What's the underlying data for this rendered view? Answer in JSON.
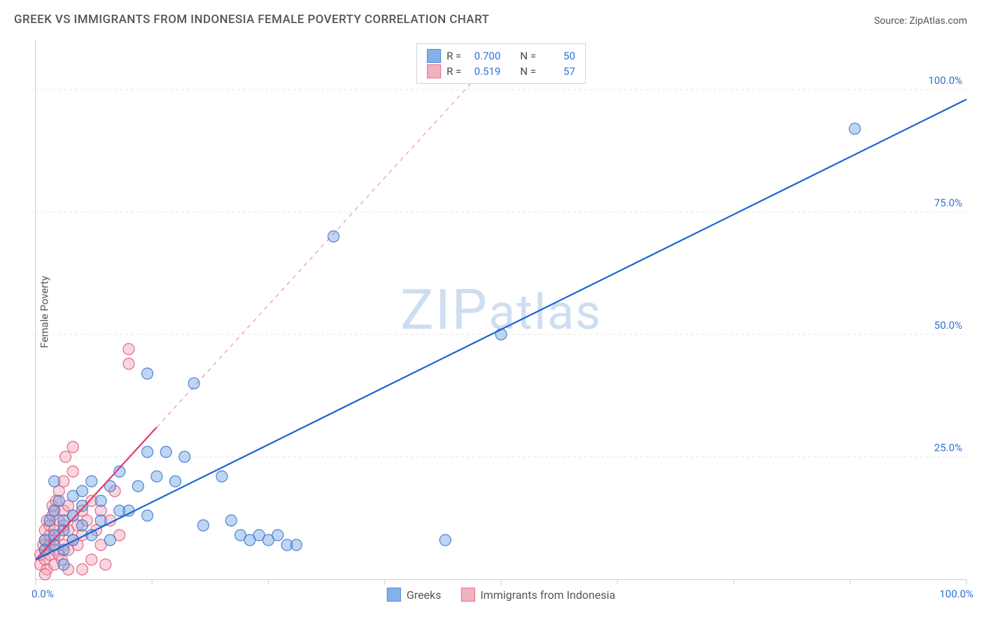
{
  "title": "GREEK VS IMMIGRANTS FROM INDONESIA FEMALE POVERTY CORRELATION CHART",
  "source": "Source: ZipAtlas.com",
  "ylabel": "Female Poverty",
  "watermark_prefix": "ZIP",
  "watermark_suffix": "atlas",
  "chart": {
    "type": "scatter",
    "xlim": [
      0,
      100
    ],
    "ylim": [
      0,
      110
    ],
    "x_axis_min_label": "0.0%",
    "x_axis_max_label": "100.0%",
    "y_gridlines": [
      {
        "value": 25,
        "label": "25.0%"
      },
      {
        "value": 50,
        "label": "50.0%"
      },
      {
        "value": 75,
        "label": "75.0%"
      },
      {
        "value": 100,
        "label": "100.0%"
      }
    ],
    "x_tick_positions": [
      0,
      12.5,
      25,
      37.5,
      50,
      62.5,
      75,
      87.5,
      100
    ],
    "background_color": "#ffffff",
    "grid_color": "#e6e6e6",
    "axis_color": "#d0d0d0",
    "tick_label_color": "#2f72d6",
    "marker_radius": 8,
    "marker_fill_opacity": 0.45,
    "marker_stroke_opacity": 0.9,
    "line_width": 2.2
  },
  "series": {
    "greeks": {
      "label": "Greeks",
      "color": "#6ea4e4",
      "stroke": "#3e79c9",
      "line_color": "#1a63d4",
      "R_label": "R =",
      "R_value": "0.700",
      "N_label": "N =",
      "N_value": "50",
      "trend": {
        "x1": 0,
        "y1": 4,
        "x2": 100,
        "y2": 98,
        "dashed_from_x": null
      },
      "points": [
        [
          1,
          6
        ],
        [
          1,
          8
        ],
        [
          1.5,
          12
        ],
        [
          2,
          7
        ],
        [
          2,
          9
        ],
        [
          2,
          14
        ],
        [
          2.5,
          16
        ],
        [
          2,
          20
        ],
        [
          3,
          6
        ],
        [
          3,
          10
        ],
        [
          3,
          12
        ],
        [
          4,
          8
        ],
        [
          4,
          13
        ],
        [
          4,
          17
        ],
        [
          5,
          11
        ],
        [
          5,
          15
        ],
        [
          5,
          18
        ],
        [
          6,
          9
        ],
        [
          6,
          20
        ],
        [
          7,
          12
        ],
        [
          7,
          16
        ],
        [
          8,
          8
        ],
        [
          8,
          19
        ],
        [
          9,
          14
        ],
        [
          9,
          22
        ],
        [
          10,
          14
        ],
        [
          11,
          19
        ],
        [
          12,
          13
        ],
        [
          12,
          26
        ],
        [
          13,
          21
        ],
        [
          14,
          26
        ],
        [
          15,
          20
        ],
        [
          16,
          25
        ],
        [
          17,
          40
        ],
        [
          18,
          11
        ],
        [
          20,
          21
        ],
        [
          21,
          12
        ],
        [
          22,
          9
        ],
        [
          23,
          8
        ],
        [
          24,
          9
        ],
        [
          25,
          8
        ],
        [
          26,
          9
        ],
        [
          27,
          7
        ],
        [
          28,
          7
        ],
        [
          12,
          42
        ],
        [
          32,
          70
        ],
        [
          44,
          8
        ],
        [
          50,
          50
        ],
        [
          88,
          92
        ],
        [
          3,
          3
        ]
      ]
    },
    "indonesia": {
      "label": "Immigrants from Indonesia",
      "color": "#f2a3b5",
      "stroke": "#e05a7f",
      "line_color": "#e23a6a",
      "R_label": "R =",
      "R_value": "0.519",
      "N_label": "N =",
      "N_value": "57",
      "trend": {
        "x1": 0,
        "y1": 4,
        "x2": 50,
        "y2": 108,
        "dashed_from_x": 13
      },
      "points": [
        [
          0.5,
          3
        ],
        [
          0.5,
          5
        ],
        [
          0.8,
          7
        ],
        [
          1,
          4
        ],
        [
          1,
          6
        ],
        [
          1,
          8
        ],
        [
          1,
          10
        ],
        [
          1.2,
          12
        ],
        [
          1.2,
          2
        ],
        [
          1.5,
          5
        ],
        [
          1.5,
          7
        ],
        [
          1.5,
          9
        ],
        [
          1.5,
          11
        ],
        [
          1.8,
          13
        ],
        [
          1.8,
          15
        ],
        [
          2,
          3
        ],
        [
          2,
          6
        ],
        [
          2,
          8
        ],
        [
          2,
          10
        ],
        [
          2,
          14
        ],
        [
          2.2,
          16
        ],
        [
          2.5,
          5
        ],
        [
          2.5,
          9
        ],
        [
          2.5,
          12
        ],
        [
          2.5,
          18
        ],
        [
          3,
          7
        ],
        [
          3,
          11
        ],
        [
          3,
          14
        ],
        [
          3,
          20
        ],
        [
          3.2,
          25
        ],
        [
          3.5,
          6
        ],
        [
          3.5,
          10
        ],
        [
          3.5,
          15
        ],
        [
          4,
          8
        ],
        [
          4,
          13
        ],
        [
          4,
          27
        ],
        [
          4.5,
          11
        ],
        [
          4.5,
          7
        ],
        [
          5,
          9
        ],
        [
          5,
          14
        ],
        [
          5,
          2
        ],
        [
          5.5,
          12
        ],
        [
          6,
          16
        ],
        [
          6,
          4
        ],
        [
          6.5,
          10
        ],
        [
          7,
          14
        ],
        [
          7,
          7
        ],
        [
          7.5,
          3
        ],
        [
          8,
          12
        ],
        [
          8.5,
          18
        ],
        [
          9,
          9
        ],
        [
          10,
          47
        ],
        [
          10,
          44
        ],
        [
          4,
          22
        ],
        [
          2.8,
          4
        ],
        [
          3.5,
          2
        ],
        [
          1,
          1
        ]
      ]
    }
  }
}
